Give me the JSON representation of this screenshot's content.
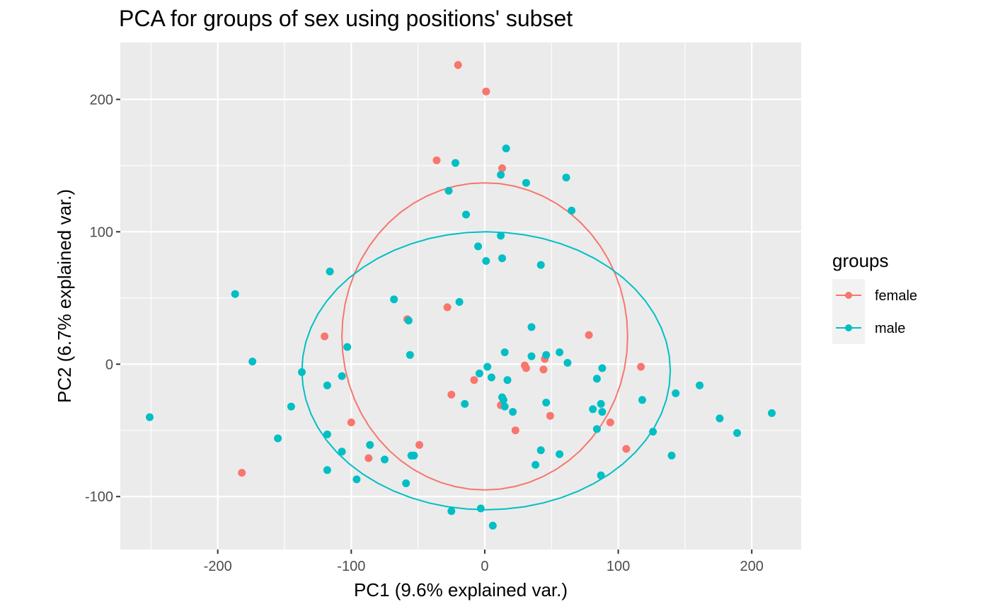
{
  "chart_data": {
    "type": "scatter",
    "title": "PCA for groups of sex using positions' subset",
    "xlabel": "PC1 (9.6% explained var.)",
    "ylabel": "PC2 (6.7% explained var.)",
    "xlim": [
      -273,
      237
    ],
    "ylim": [
      -140,
      243
    ],
    "x_ticks": [
      -200,
      -100,
      0,
      100,
      200
    ],
    "x_tick_labels": [
      "-200",
      "-100",
      "0",
      "100",
      "200"
    ],
    "y_ticks": [
      -100,
      0,
      100,
      200
    ],
    "y_tick_labels": [
      "-100",
      "0",
      "100",
      "200"
    ],
    "grid": true,
    "legend": {
      "title": "groups",
      "position": "right"
    },
    "series": [
      {
        "name": "female",
        "color": "#F8766D",
        "ellipse": {
          "cx": 0,
          "cy": 21,
          "rx": 107,
          "ry": 116
        },
        "points": [
          [
            -20,
            226
          ],
          [
            1,
            206
          ],
          [
            -36,
            154
          ],
          [
            13,
            148
          ],
          [
            -28,
            43
          ],
          [
            -58,
            34
          ],
          [
            -120,
            21
          ],
          [
            78,
            22
          ],
          [
            117,
            -2
          ],
          [
            30,
            -1
          ],
          [
            31,
            -3
          ],
          [
            44,
            -4
          ],
          [
            45,
            4
          ],
          [
            -8,
            -12
          ],
          [
            -25,
            -23
          ],
          [
            12,
            -31
          ],
          [
            49,
            -39
          ],
          [
            -100,
            -44
          ],
          [
            94,
            -44
          ],
          [
            23,
            -50
          ],
          [
            -49,
            -61
          ],
          [
            106,
            -64
          ],
          [
            -87,
            -71
          ],
          [
            -182,
            -82
          ]
        ]
      },
      {
        "name": "male",
        "color": "#00BFC4",
        "ellipse": {
          "cx": 1,
          "cy": -5,
          "rx": 138,
          "ry": 105
        },
        "points": [
          [
            -251,
            -40
          ],
          [
            -187,
            53
          ],
          [
            -174,
            2
          ],
          [
            -155,
            -56
          ],
          [
            -145,
            -32
          ],
          [
            -137,
            -6
          ],
          [
            -116,
            70
          ],
          [
            -118,
            -16
          ],
          [
            -118,
            -53
          ],
          [
            -118,
            -80
          ],
          [
            -107,
            -9
          ],
          [
            -107,
            -66
          ],
          [
            -103,
            13
          ],
          [
            -96,
            -87
          ],
          [
            -86,
            -61
          ],
          [
            -75,
            -72
          ],
          [
            -68,
            49
          ],
          [
            -59,
            -90
          ],
          [
            -57,
            33
          ],
          [
            -56,
            7
          ],
          [
            -55,
            -69
          ],
          [
            -53,
            -69
          ],
          [
            -27,
            131
          ],
          [
            -22,
            152
          ],
          [
            -14,
            113
          ],
          [
            -19,
            47
          ],
          [
            -15,
            -30
          ],
          [
            -5,
            89
          ],
          [
            -4,
            -7
          ],
          [
            -3,
            -109
          ],
          [
            -25,
            -111
          ],
          [
            1,
            78
          ],
          [
            2,
            -2
          ],
          [
            5,
            -10
          ],
          [
            6,
            -122
          ],
          [
            12,
            97
          ],
          [
            13,
            80
          ],
          [
            12,
            143
          ],
          [
            16,
            163
          ],
          [
            14,
            -27
          ],
          [
            13,
            -25
          ],
          [
            15,
            9
          ],
          [
            15,
            -32
          ],
          [
            17,
            -12
          ],
          [
            21,
            -36
          ],
          [
            31,
            137
          ],
          [
            35,
            6
          ],
          [
            35,
            28
          ],
          [
            42,
            -65
          ],
          [
            42,
            75
          ],
          [
            38,
            -76
          ],
          [
            46,
            7
          ],
          [
            46,
            -29
          ],
          [
            56,
            9
          ],
          [
            56,
            -68
          ],
          [
            61,
            141
          ],
          [
            62,
            1
          ],
          [
            65,
            116
          ],
          [
            81,
            -34
          ],
          [
            84,
            -11
          ],
          [
            84,
            -49
          ],
          [
            87,
            -84
          ],
          [
            88,
            -3
          ],
          [
            87,
            -30
          ],
          [
            88,
            -36
          ],
          [
            118,
            -27
          ],
          [
            126,
            -51
          ],
          [
            140,
            -69
          ],
          [
            143,
            -22
          ],
          [
            161,
            -16
          ],
          [
            176,
            -41
          ],
          [
            189,
            -52
          ],
          [
            215,
            -37
          ]
        ]
      }
    ]
  }
}
